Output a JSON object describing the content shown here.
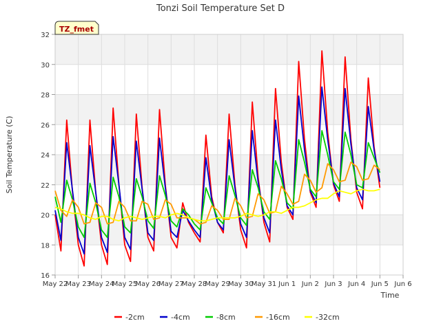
{
  "chart_data": {
    "type": "line",
    "title": "Tonzi Soil Temperature Set D",
    "xlabel": "Time",
    "ylabel": "Soil Temperature (C)",
    "site_label": "TZ_fmet",
    "ylim": [
      16,
      32
    ],
    "yticks": [
      16,
      18,
      20,
      22,
      24,
      26,
      28,
      30,
      32
    ],
    "xlim": [
      "May 22",
      "Jun 6"
    ],
    "xticks": [
      "May 22",
      "May 23",
      "May 24",
      "May 25",
      "May 26",
      "May 27",
      "May 28",
      "May 29",
      "May 30",
      "May 31",
      "Jun 1",
      "Jun 2",
      "Jun 3",
      "Jun 4",
      "Jun 5",
      "Jun 6"
    ],
    "grid": true,
    "legend_position": "bottom",
    "sample_points_per_day": 4,
    "series": [
      {
        "name": "-2cm",
        "color": "#ff0000",
        "values": [
          20.0,
          17.6,
          26.3,
          21.5,
          18.0,
          16.6,
          26.3,
          21.5,
          18.0,
          16.7,
          27.1,
          22.0,
          18.0,
          16.9,
          26.7,
          21.8,
          18.5,
          17.6,
          27.0,
          22.0,
          18.5,
          17.8,
          20.8,
          19.5,
          18.8,
          18.2,
          25.3,
          21.2,
          19.5,
          18.8,
          26.7,
          22.0,
          19.0,
          17.8,
          27.5,
          22.5,
          19.5,
          18.2,
          28.4,
          23.5,
          20.5,
          19.7,
          30.2,
          25.0,
          21.5,
          20.5,
          30.9,
          25.5,
          22.0,
          20.9,
          30.5,
          25.0,
          21.5,
          20.4,
          29.1,
          24.5,
          21.8
        ]
      },
      {
        "name": "-4cm",
        "color": "#0000cc",
        "values": [
          20.3,
          18.3,
          24.8,
          21.6,
          18.5,
          17.4,
          24.6,
          21.5,
          18.5,
          17.5,
          25.2,
          22.0,
          18.5,
          17.7,
          24.9,
          21.7,
          18.8,
          18.3,
          25.1,
          21.8,
          18.9,
          18.5,
          20.3,
          19.6,
          19.0,
          18.5,
          23.8,
          21.0,
          19.5,
          19.0,
          25.0,
          21.8,
          19.4,
          18.5,
          25.6,
          22.2,
          19.8,
          18.8,
          26.3,
          23.0,
          20.6,
          20.0,
          27.9,
          24.3,
          21.6,
          20.8,
          28.5,
          25.0,
          22.1,
          21.2,
          28.4,
          24.7,
          21.8,
          21.0,
          27.2,
          24.3,
          22.2
        ]
      },
      {
        "name": "-8cm",
        "color": "#00cc00",
        "values": [
          21.2,
          19.5,
          22.3,
          21.0,
          19.2,
          18.5,
          22.1,
          20.8,
          19.0,
          18.5,
          22.5,
          21.2,
          19.2,
          18.8,
          22.4,
          21.2,
          19.6,
          19.1,
          22.6,
          21.3,
          19.6,
          19.2,
          20.4,
          20.0,
          19.4,
          19.0,
          21.8,
          20.8,
          19.8,
          19.4,
          22.6,
          21.3,
          19.8,
          19.3,
          23.0,
          21.8,
          20.2,
          19.7,
          23.6,
          22.4,
          20.8,
          20.4,
          25.0,
          23.5,
          21.7,
          21.2,
          25.6,
          24.0,
          22.2,
          21.7,
          25.5,
          24.0,
          22.0,
          21.8,
          24.8,
          23.8,
          22.8
        ]
      },
      {
        "name": "-16cm",
        "color": "#ff9900",
        "values": [
          21.6,
          20.3,
          19.9,
          21.0,
          20.5,
          19.4,
          19.5,
          20.8,
          20.5,
          19.4,
          19.5,
          20.9,
          20.5,
          19.6,
          19.6,
          20.9,
          20.7,
          19.7,
          19.8,
          21.0,
          20.7,
          19.8,
          19.8,
          19.8,
          19.7,
          19.4,
          19.5,
          20.6,
          20.3,
          19.7,
          19.7,
          21.1,
          20.6,
          19.8,
          19.9,
          21.4,
          21.0,
          20.1,
          20.2,
          21.9,
          21.4,
          20.7,
          20.9,
          22.7,
          22.3,
          21.5,
          21.8,
          23.4,
          23.0,
          22.2,
          22.3,
          23.5,
          23.2,
          22.3,
          22.4,
          23.3,
          23.0
        ]
      },
      {
        "name": "-32cm",
        "color": "#ffff00",
        "values": [
          20.5,
          20.4,
          20.2,
          20.1,
          20.1,
          20.0,
          19.8,
          19.7,
          19.9,
          19.9,
          19.7,
          19.6,
          19.8,
          19.9,
          19.8,
          19.7,
          19.8,
          19.9,
          19.9,
          19.8,
          20.0,
          20.1,
          20.0,
          19.8,
          19.7,
          19.6,
          19.6,
          19.7,
          19.8,
          19.8,
          19.8,
          19.8,
          19.9,
          20.1,
          20.0,
          19.9,
          20.0,
          20.2,
          20.2,
          20.1,
          20.3,
          20.5,
          20.5,
          20.6,
          20.8,
          21.0,
          21.1,
          21.1,
          21.4,
          21.6,
          21.5,
          21.4,
          21.6,
          21.7,
          21.6,
          21.6,
          21.7
        ]
      }
    ]
  }
}
